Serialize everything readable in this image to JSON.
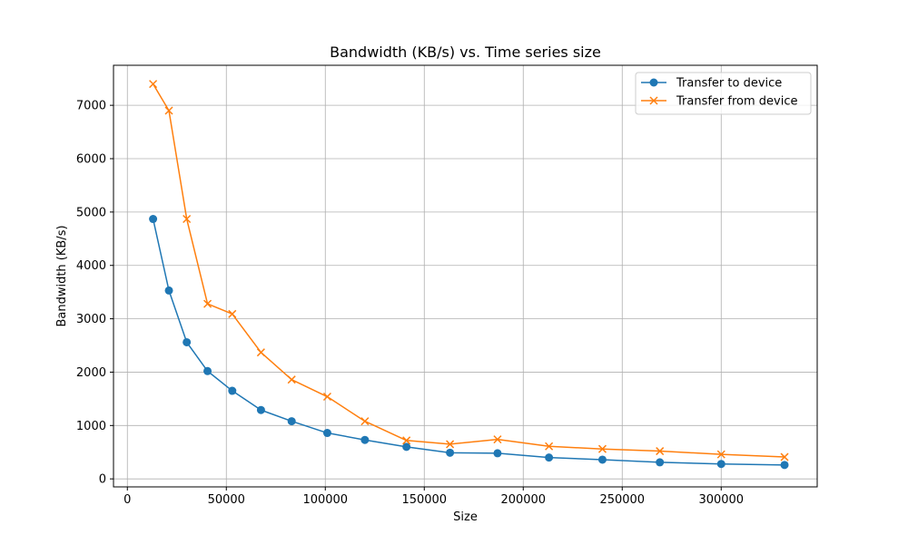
{
  "chart_data": {
    "type": "line",
    "title": "Bandwidth (KB/s) vs. Time series size",
    "xlabel": "Size",
    "ylabel": "Bandwidth (KB/s)",
    "xlim": [
      -7000,
      348500
    ],
    "ylim": [
      -150,
      7750
    ],
    "xticks": [
      0,
      50000,
      100000,
      150000,
      200000,
      250000,
      300000
    ],
    "yticks": [
      0,
      1000,
      2000,
      3000,
      4000,
      5000,
      6000,
      7000
    ],
    "grid": true,
    "legend_position": "top-right",
    "x": [
      13000,
      21000,
      30000,
      40500,
      53000,
      67500,
      83000,
      101000,
      120000,
      141000,
      163000,
      187000,
      213000,
      240000,
      269000,
      300000,
      332000
    ],
    "series": [
      {
        "name": "Transfer to device",
        "color": "#1f77b4",
        "marker": "circle",
        "values": [
          4870,
          3530,
          2560,
          2020,
          1650,
          1290,
          1080,
          860,
          730,
          600,
          490,
          480,
          400,
          360,
          310,
          280,
          260
        ]
      },
      {
        "name": "Transfer from device",
        "color": "#ff7f0e",
        "marker": "x",
        "values": [
          7400,
          6900,
          4870,
          3280,
          3090,
          2370,
          1860,
          1540,
          1080,
          720,
          650,
          740,
          610,
          560,
          520,
          460,
          410
        ]
      }
    ]
  }
}
